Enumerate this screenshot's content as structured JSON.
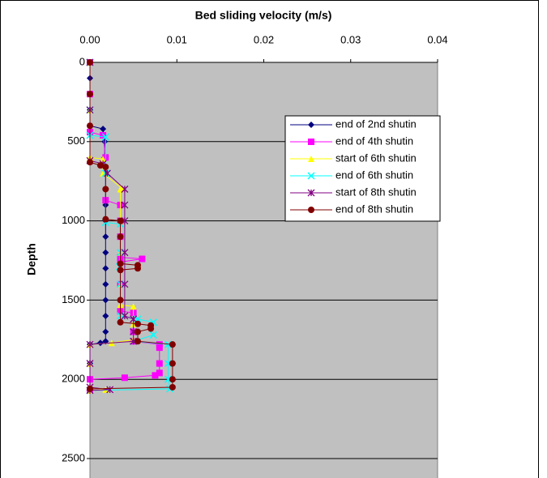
{
  "chart_data": {
    "type": "line",
    "title": "Bed sliding velocity (m/s)",
    "y_label": "Depth",
    "xlim": [
      0,
      0.04
    ],
    "xticks": [
      {
        "value": 0,
        "label": "0.00"
      },
      0.01,
      0.02,
      0.03,
      0.04
    ],
    "ylim": [
      0,
      2500
    ],
    "yticks": [
      0,
      500,
      1000,
      1500,
      2000,
      2500
    ],
    "y_inverted": true,
    "grid": true,
    "legend": "upper right",
    "series": [
      {
        "name": "end of 2nd shutin",
        "color": "#000080",
        "marker": "diamond",
        "x": [
          0,
          0,
          0,
          0,
          0,
          0.0015,
          0.0017,
          0.0017,
          0.0018,
          0.0018,
          0.0018,
          0.0018,
          0.0018,
          0.0018,
          0.0018,
          0.0018,
          0.0018,
          0.0018,
          0.0018,
          0.0018,
          0.0012,
          0,
          0,
          0,
          0
        ],
        "values": [
          0,
          100,
          200,
          300,
          400,
          420,
          500,
          600,
          700,
          800,
          900,
          1000,
          1100,
          1200,
          1300,
          1400,
          1500,
          1600,
          1700,
          1760,
          1770,
          1780,
          1900,
          2000,
          2070
        ]
      },
      {
        "name": "end of 4th shutin",
        "color": "#ff00ff",
        "marker": "square",
        "x": [
          0,
          0,
          0,
          0.0015,
          0.0018,
          0.0018,
          0.0035,
          0.0035,
          0.0035,
          0.0035,
          0.006,
          0.0035,
          0.0035,
          0.0035,
          0.005,
          0.005,
          0.005,
          0.008,
          0.008,
          0.008,
          0.008,
          0.0075,
          0.004,
          0,
          0
        ],
        "values": [
          0,
          200,
          440,
          460,
          600,
          870,
          900,
          1000,
          1100,
          1230,
          1240,
          1260,
          1400,
          1570,
          1580,
          1700,
          1760,
          1780,
          1800,
          1900,
          1960,
          1975,
          1990,
          2000,
          2070
        ]
      },
      {
        "name": "start of 6th shutin",
        "color": "#ffff00",
        "marker": "triangle",
        "x": [
          0,
          0,
          0,
          0.0015,
          0.0015,
          0.0036,
          0.0035,
          0.0035,
          0.0035,
          0.0035,
          0.0035,
          0.005,
          0.005,
          0.005,
          0.0025,
          0,
          0,
          0,
          0.0018,
          0
        ],
        "values": [
          0,
          300,
          600,
          610,
          700,
          790,
          800,
          1000,
          1200,
          1400,
          1530,
          1540,
          1650,
          1750,
          1770,
          1780,
          1900,
          2050,
          2065,
          2070
        ]
      },
      {
        "name": "end of 6th shutin",
        "color": "#00ffff",
        "marker": "x",
        "x": [
          0,
          0,
          0,
          0.0018,
          0.0018,
          0.0018,
          0.0035,
          0.0035,
          0.0034,
          0.0035,
          0.0035,
          0.0055,
          0.0073,
          0.0073,
          0.005,
          0.009,
          0.009,
          0.009,
          0.0092,
          0
        ],
        "values": [
          0,
          300,
          460,
          470,
          700,
          1010,
          1020,
          1200,
          1290,
          1400,
          1600,
          1620,
          1640,
          1720,
          1760,
          1780,
          1900,
          2000,
          2060,
          2070
        ]
      },
      {
        "name": "start of 8th shutin",
        "color": "#800080",
        "marker": "star",
        "x": [
          0,
          0,
          0,
          0.0015,
          0.002,
          0.004,
          0.004,
          0.004,
          0.004,
          0.004,
          0.004,
          0.005,
          0.005,
          0.005,
          0,
          0,
          0,
          0.0023,
          0
        ],
        "values": [
          0,
          300,
          620,
          640,
          700,
          800,
          900,
          1000,
          1200,
          1400,
          1600,
          1620,
          1700,
          1760,
          1780,
          1900,
          2050,
          2065,
          2070
        ]
      },
      {
        "name": "end of 8th shutin",
        "color": "#800000",
        "marker": "circle",
        "x": [
          0,
          0,
          0,
          0,
          0.0012,
          0.0018,
          0.0018,
          0.0018,
          0.0035,
          0.0035,
          0.0035,
          0.0055,
          0.0055,
          0.0035,
          0.0035,
          0.0035,
          0.0055,
          0.007,
          0.007,
          0.0055,
          0.0055,
          0.0095,
          0.0095,
          0.0095,
          0.0095,
          0
        ],
        "values": [
          0,
          200,
          400,
          630,
          650,
          660,
          800,
          990,
          1000,
          1100,
          1270,
          1280,
          1300,
          1310,
          1500,
          1640,
          1650,
          1660,
          1680,
          1700,
          1760,
          1780,
          1900,
          2000,
          2050,
          2060
        ]
      }
    ]
  }
}
